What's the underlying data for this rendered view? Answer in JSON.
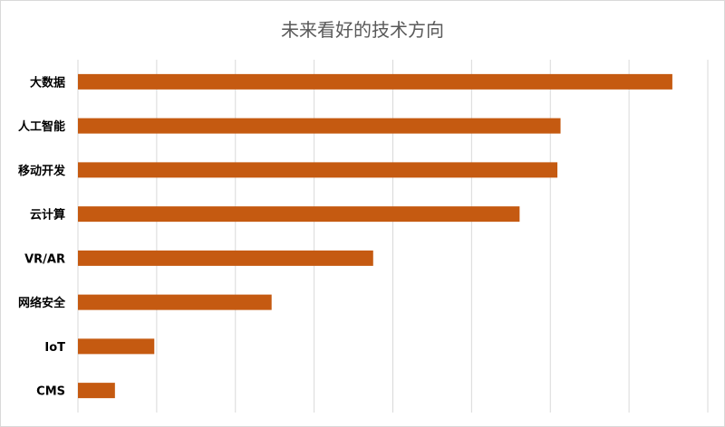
{
  "chart_data": {
    "type": "bar",
    "orientation": "horizontal",
    "title": "未来看好的技术方向",
    "categories": [
      "大数据",
      "人工智能",
      "移动开发",
      "云计算",
      "VR/AR",
      "网络安全",
      "IoT",
      "CMS"
    ],
    "values": [
      75.5,
      61.3,
      60.9,
      56.1,
      37.5,
      24.6,
      9.7,
      4.7
    ],
    "xlim": [
      0,
      80
    ],
    "grid": true,
    "colors": {
      "bar": "#c55a11",
      "grid": "#d9d9d9",
      "title": "#595959",
      "label": "#000000"
    }
  }
}
